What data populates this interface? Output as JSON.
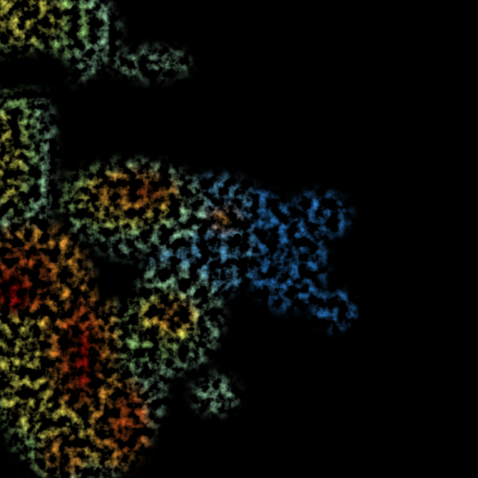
{
  "image": {
    "kind": "weather-radar-reflectivity",
    "background_color": "#000000",
    "radar_site_marker_color": "#000000",
    "palette": {
      "weak_blue": "#2a7fd0",
      "light_blue": "#5fb8e8",
      "cyan_green": "#9fe0b0",
      "green": "#9ee07a",
      "yellow": "#f2ef5a",
      "orange": "#f0a030",
      "red_orange": "#e05a1a",
      "dark_red": "#b01010"
    }
  }
}
